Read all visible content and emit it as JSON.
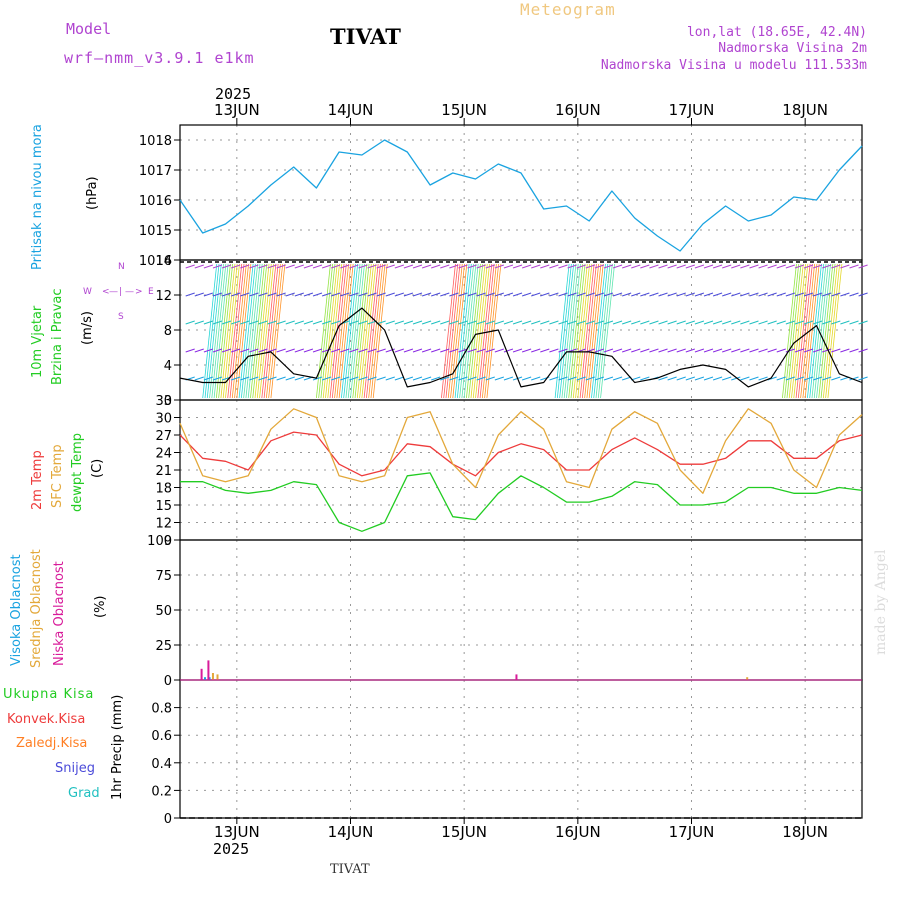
{
  "header": {
    "model_label": "Model",
    "model_name": "wrf—nmm_v3.9.1  e1km",
    "station": "TIVAT",
    "title": "Meteogram",
    "coords": "lon,lat (18.65E, 42.4N)",
    "altitude": "Nadmorska Visina 2m",
    "model_altitude": "Nadmorska Visina u modelu 111.533m",
    "footer_station": "TIVAT",
    "credit": "made by Angel"
  },
  "colors": {
    "pressure": "#1aa3e0",
    "temp2m": "#ee3b3b",
    "sfc": "#e3a83a",
    "dewpt": "#22cc22",
    "purple": "#b044d0",
    "high_cloud": "#1aa3e0",
    "mid_cloud": "#e3a83a",
    "low_cloud": "#d81b9a"
  },
  "chart_data": [
    {
      "type": "line",
      "panel": "pressure",
      "ylabel_parts": [
        "Pritisak na nivou mora",
        "(hPa)"
      ],
      "ylim": [
        1014,
        1018.5
      ],
      "yticks": [
        1014,
        1015,
        1016,
        1017,
        1018
      ],
      "x_days": [
        12.5,
        12.7,
        12.9,
        13.1,
        13.3,
        13.5,
        13.7,
        13.9,
        14.1,
        14.3,
        14.5,
        14.7,
        14.9,
        15.1,
        15.3,
        15.5,
        15.7,
        15.9,
        16.1,
        16.3,
        16.5,
        16.7,
        16.9,
        17.1,
        17.3,
        17.5,
        17.7,
        17.9,
        18.1,
        18.3,
        18.5
      ],
      "x_ticks": [
        "13JUN",
        "14JUN",
        "15JUN",
        "16JUN",
        "17JUN",
        "18JUN"
      ],
      "year": "2025",
      "series": [
        {
          "values": [
            1016.0,
            1014.9,
            1015.2,
            1015.8,
            1016.5,
            1017.1,
            1016.4,
            1017.6,
            1017.5,
            1018.0,
            1017.6,
            1016.5,
            1016.9,
            1016.7,
            1017.2,
            1016.9,
            1015.7,
            1015.8,
            1015.3,
            1016.3,
            1015.4,
            1014.8,
            1014.3,
            1015.2,
            1015.8,
            1015.3,
            1015.5,
            1016.1,
            1016.0,
            1017.0,
            1017.8
          ]
        }
      ]
    },
    {
      "type": "line",
      "panel": "wind",
      "ylabel_parts": [
        "10m Vjetar",
        "Brzina i Pravac",
        "(m/s)"
      ],
      "compass": [
        "W",
        "<",
        "—",
        "|",
        "—",
        ">",
        "E",
        "S",
        "N"
      ],
      "ylim": [
        0,
        16
      ],
      "yticks": [
        0,
        4,
        8,
        12,
        16
      ],
      "x_days": [
        12.5,
        12.7,
        12.9,
        13.1,
        13.3,
        13.5,
        13.7,
        13.9,
        14.1,
        14.3,
        14.5,
        14.7,
        14.9,
        15.1,
        15.3,
        15.5,
        15.7,
        15.9,
        16.1,
        16.3,
        16.5,
        16.7,
        16.9,
        17.1,
        17.3,
        17.5,
        17.7,
        17.9,
        18.1,
        18.3,
        18.5
      ],
      "series": [
        {
          "values": [
            2.5,
            2.0,
            2.0,
            5.0,
            5.5,
            3.0,
            2.5,
            8.5,
            10.5,
            8.0,
            1.5,
            2.0,
            3.0,
            7.5,
            8.0,
            1.5,
            2.0,
            5.5,
            5.5,
            5.0,
            2.0,
            2.5,
            3.5,
            4.0,
            3.5,
            1.5,
            2.5,
            6.5,
            8.5,
            3.0,
            2.0
          ]
        }
      ]
    },
    {
      "type": "line",
      "panel": "temperature",
      "ylabel_parts": [
        "2m Temp",
        "SFC Temp",
        "dewpt Temp",
        "(C)"
      ],
      "ylim": [
        9,
        33
      ],
      "yticks": [
        9,
        12,
        15,
        18,
        21,
        24,
        27,
        30,
        33
      ],
      "x_days": [
        12.5,
        12.7,
        12.9,
        13.1,
        13.3,
        13.5,
        13.7,
        13.9,
        14.1,
        14.3,
        14.5,
        14.7,
        14.9,
        15.1,
        15.3,
        15.5,
        15.7,
        15.9,
        16.1,
        16.3,
        16.5,
        16.7,
        16.9,
        17.1,
        17.3,
        17.5,
        17.7,
        17.9,
        18.1,
        18.3,
        18.5
      ],
      "series": [
        {
          "values": [
            27,
            23,
            22.5,
            21,
            26,
            27.5,
            27,
            22,
            20,
            21,
            25.5,
            25,
            22,
            20,
            24,
            25.5,
            24.5,
            21,
            21,
            24.5,
            26.5,
            24.5,
            22,
            22,
            23,
            26,
            26,
            23,
            23,
            26,
            27
          ]
        },
        {
          "values": [
            29,
            20,
            19,
            20,
            28,
            31.5,
            30,
            20,
            19,
            20,
            30,
            31,
            22,
            18,
            27,
            31,
            28,
            19,
            18,
            28,
            31,
            29,
            21,
            17,
            26,
            31.5,
            29,
            21,
            18,
            27,
            30.5
          ]
        },
        {
          "values": [
            19,
            19,
            17.5,
            17,
            17.5,
            19,
            18.5,
            12,
            10.5,
            12,
            20,
            20.5,
            13,
            12.5,
            17,
            20,
            18,
            15.5,
            15.5,
            16.5,
            19,
            18.5,
            15,
            15,
            15.5,
            18,
            18,
            17,
            17,
            18,
            17.5
          ]
        }
      ]
    },
    {
      "type": "bar",
      "panel": "cloud",
      "ylabel_parts": [
        "Visoka Oblacnost",
        "Srednja Oblacnost",
        "Niska Oblacnost",
        "(%)"
      ],
      "ylim": [
        0,
        100
      ],
      "yticks": [
        0,
        25,
        50,
        75,
        100
      ],
      "series": [
        {
          "x_days": [
            12.72,
            12.76,
            15.43
          ],
          "values": [
            2,
            2,
            0
          ]
        },
        {
          "x_days": [
            12.79,
            12.83,
            17.49
          ],
          "values": [
            5,
            4,
            2
          ]
        },
        {
          "x_days": [
            12.75,
            12.69,
            15.46
          ],
          "values": [
            14,
            8,
            4
          ]
        }
      ]
    },
    {
      "type": "bar",
      "panel": "precip",
      "ylabel_parts": [
        "1hr Precip (mm)"
      ],
      "legend": [
        "Ukupna Kisa",
        "Konvek.Kisa",
        "Zaledj.Kisa",
        "Snijeg",
        "Grad"
      ],
      "legend_colors": [
        "#22cc22",
        "#ee3b3b",
        "#ff7f24",
        "#4b4bd9",
        "#20c0c0"
      ],
      "ylim": [
        0,
        1
      ],
      "yticks": [
        0,
        0.2,
        0.4,
        0.6,
        0.8
      ],
      "series": []
    }
  ]
}
